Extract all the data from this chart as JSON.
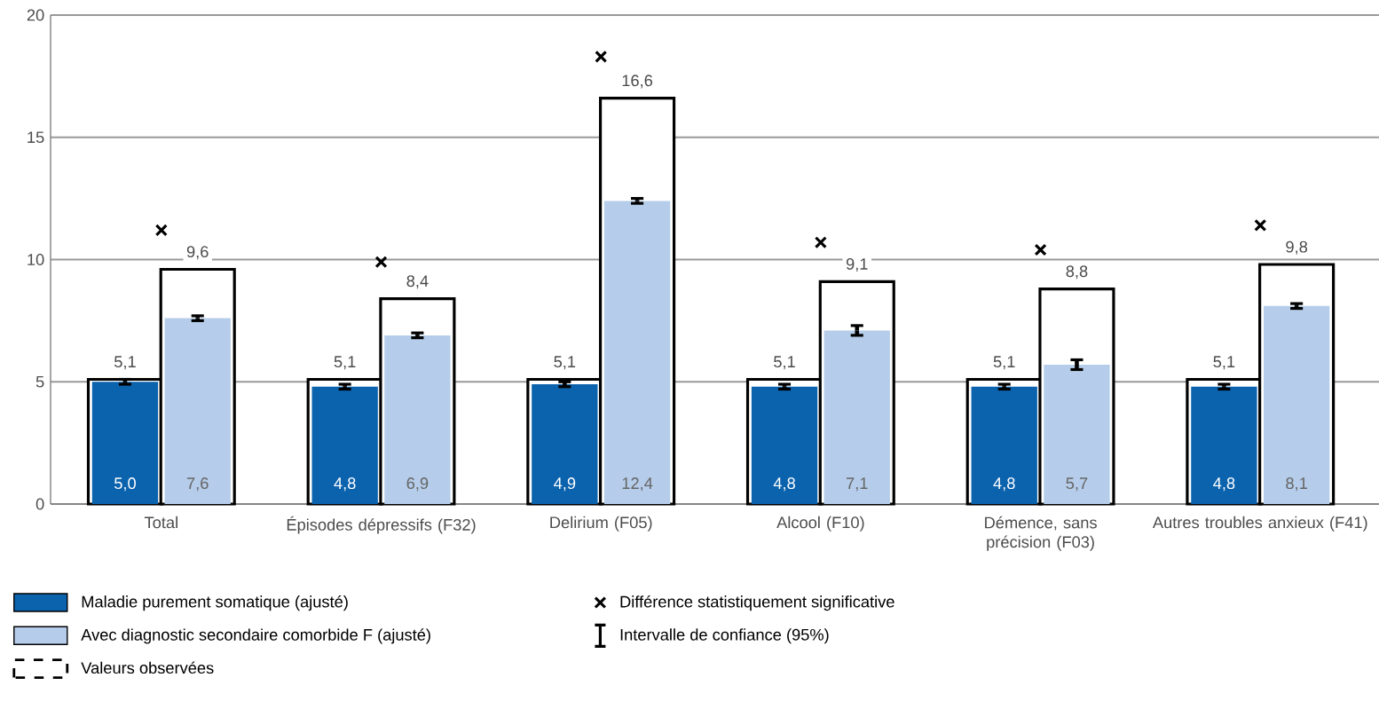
{
  "chart_data": {
    "type": "bar",
    "categories": [
      "Total",
      "Épisodes dépressifs (F32)",
      "Delirium (F05)",
      "Alcool (F10)",
      "Démence, sans précision (F03)",
      "Autres troubles anxieux (F41)"
    ],
    "ylim": [
      0,
      20
    ],
    "yticks": [
      0,
      5,
      10,
      15,
      20
    ],
    "grid": "y",
    "legend": "bottom",
    "series": [
      {
        "color": "#ffffff",
        "values": [
          5.1,
          5.1,
          5.1,
          5.1,
          5.1,
          5.1
        ],
        "value_labels": [
          "5,1",
          "5,1",
          "5,1",
          "5,1",
          "5,1",
          "5,1"
        ]
      },
      {
        "name": "Valeurs observées",
        "color": "#ffffff",
        "values": [
          9.6,
          8.4,
          16.6,
          9.1,
          8.8,
          9.8
        ],
        "value_labels": [
          "9,6",
          "8,4",
          "16,6",
          "9,1",
          "8,8",
          "9,8"
        ]
      },
      {
        "name": "Maladie purement somatique (ajusté)",
        "color": "#0b62ad",
        "values": [
          5.0,
          4.8,
          4.9,
          4.8,
          4.8,
          4.8
        ],
        "errors": [
          0.1,
          0.1,
          0.1,
          0.1,
          0.1,
          0.1
        ],
        "value_labels": [
          "5,0",
          "4,8",
          "4,9",
          "4,8",
          "4,8",
          "4,8"
        ]
      },
      {
        "name": "Avec diagnostic secondaire comorbide F (ajusté)",
        "color": "#b5cdea",
        "values": [
          7.6,
          6.9,
          12.4,
          7.1,
          5.7,
          8.1
        ],
        "errors": [
          0.1,
          0.1,
          0.1,
          0.2,
          0.2,
          0.1
        ],
        "value_labels": [
          "7,6",
          "6,9",
          "12,4",
          "7,1",
          "5,7",
          "8,1"
        ]
      },
      {
        "name": "Différence statistiquement significative",
        "type": "scatter",
        "marker": "cross",
        "color": "#000000",
        "x": [
          "Total",
          "Épisodes dépressifs (F32)",
          "Delirium (F05)",
          "Alcool (F10)",
          "Démence, sans précision (F03)",
          "Autres troubles anxieux (F41)"
        ],
        "values": [
          11.2,
          9.9,
          18.3,
          10.7,
          10.4,
          11.4
        ]
      }
    ],
    "annotations": [
      "Intervalle de confiance (95%)"
    ]
  }
}
